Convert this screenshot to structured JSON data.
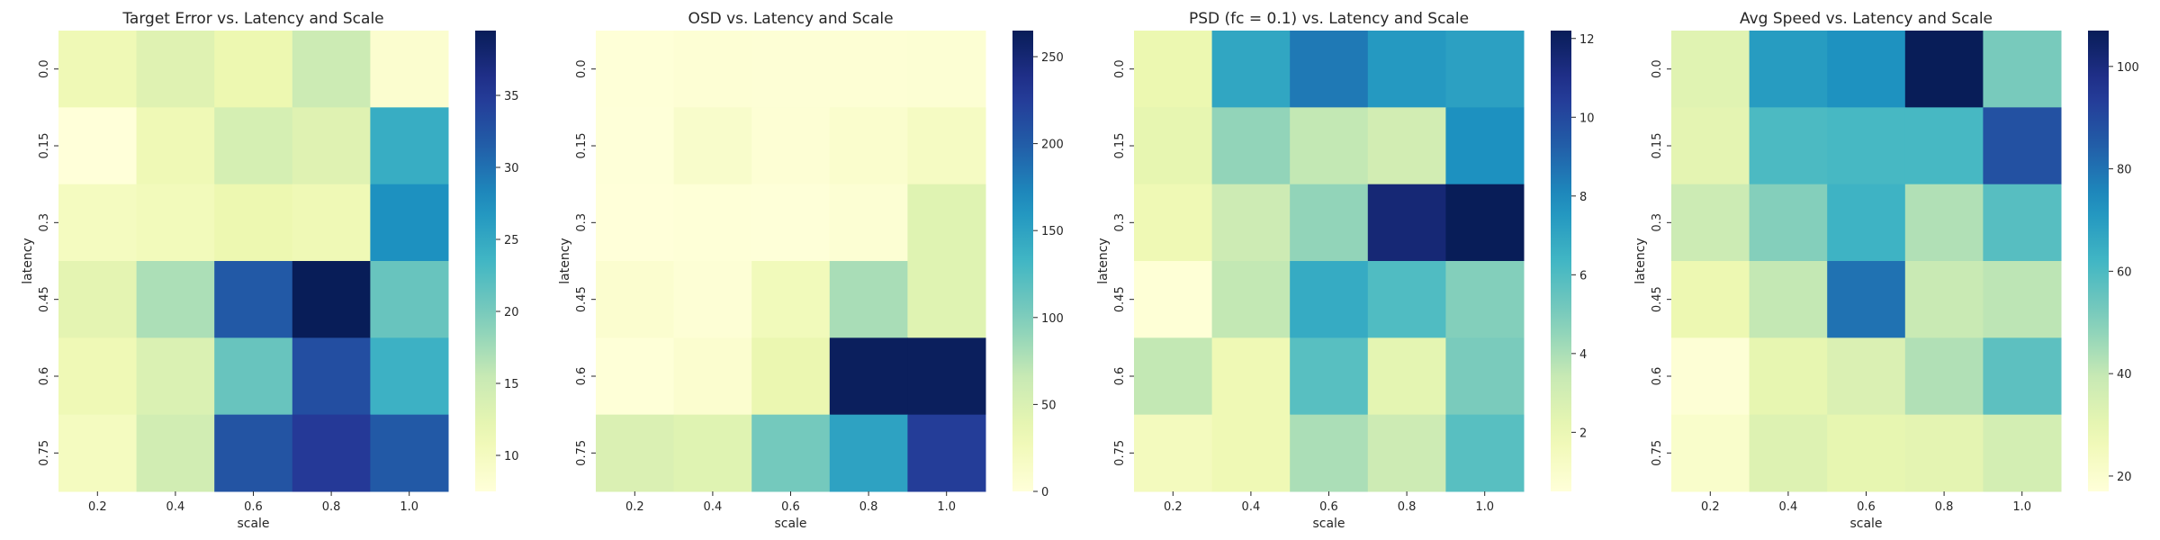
{
  "colors": {
    "colormap": [
      "#ffffd9",
      "#edf8b1",
      "#c7e9b4",
      "#7fcdbb",
      "#41b6c4",
      "#1d91c0",
      "#225ea8",
      "#253494",
      "#081d58"
    ],
    "text": "#262626"
  },
  "chart_data": [
    {
      "type": "heatmap",
      "title": "Target Error vs. Latency and Scale",
      "xlabel": "scale",
      "ylabel": "latency",
      "x_categories": [
        "0.2",
        "0.4",
        "0.6",
        "0.8",
        "1.0"
      ],
      "y_categories": [
        "0.0",
        "0.15",
        "0.3",
        "0.45",
        "0.6",
        "0.75"
      ],
      "values": [
        [
          11.0,
          13.0,
          11.5,
          15.0,
          8.5
        ],
        [
          7.5,
          11.0,
          14.0,
          13.0,
          24.5
        ],
        [
          10.0,
          10.5,
          11.5,
          11.0,
          27.5
        ],
        [
          12.5,
          17.0,
          32.0,
          39.5,
          21.0
        ],
        [
          11.0,
          13.5,
          21.0,
          33.0,
          24.0
        ],
        [
          10.0,
          14.5,
          32.5,
          35.0,
          32.0
        ]
      ],
      "vmin": 7.5,
      "vmax": 39.5,
      "colorbar_ticks": [
        10,
        15,
        20,
        25,
        30,
        35
      ]
    },
    {
      "type": "heatmap",
      "title": "OSD vs. Latency and Scale",
      "xlabel": "scale",
      "ylabel": "latency",
      "x_categories": [
        "0.2",
        "0.4",
        "0.6",
        "0.8",
        "1.0"
      ],
      "y_categories": [
        "0.0",
        "0.15",
        "0.3",
        "0.45",
        "0.6",
        "0.75"
      ],
      "values": [
        [
          2,
          4,
          3,
          4,
          5
        ],
        [
          1,
          12,
          4,
          10,
          18
        ],
        [
          0,
          2,
          1,
          5,
          45
        ],
        [
          8,
          3,
          25,
          80,
          45
        ],
        [
          2,
          8,
          35,
          262,
          262
        ],
        [
          50,
          45,
          105,
          150,
          225
        ]
      ],
      "vmin": 0,
      "vmax": 265,
      "colorbar_ticks": [
        0,
        50,
        100,
        150,
        200,
        250
      ]
    },
    {
      "type": "heatmap",
      "title": "PSD (fc = 0.1) vs. Latency and Scale",
      "xlabel": "scale",
      "ylabel": "latency",
      "x_categories": [
        "0.2",
        "0.4",
        "0.6",
        "0.8",
        "1.0"
      ],
      "y_categories": [
        "0.0",
        "0.15",
        "0.3",
        "0.45",
        "0.6",
        "0.75"
      ],
      "values": [
        [
          2.0,
          7.0,
          8.5,
          7.5,
          7.2
        ],
        [
          2.2,
          4.5,
          3.5,
          3.0,
          7.8
        ],
        [
          1.8,
          3.2,
          4.5,
          11.5,
          12.2
        ],
        [
          0.6,
          3.5,
          6.8,
          6.0,
          4.8
        ],
        [
          3.5,
          1.8,
          5.8,
          2.3,
          5.0
        ],
        [
          1.5,
          1.8,
          4.0,
          3.2,
          5.8
        ]
      ],
      "vmin": 0.5,
      "vmax": 12.2,
      "colorbar_ticks": [
        2,
        4,
        6,
        8,
        10,
        12
      ]
    },
    {
      "type": "heatmap",
      "title": "Avg Speed vs. Latency and Scale",
      "xlabel": "scale",
      "ylabel": "latency",
      "x_categories": [
        "0.2",
        "0.4",
        "0.6",
        "0.8",
        "1.0"
      ],
      "y_categories": [
        "0.0",
        "0.15",
        "0.3",
        "0.45",
        "0.6",
        "0.75"
      ],
      "values": [
        [
          32,
          70,
          73,
          107,
          52
        ],
        [
          31,
          60,
          61,
          61,
          88
        ],
        [
          38,
          50,
          63,
          43,
          58
        ],
        [
          28,
          40,
          80,
          39,
          41
        ],
        [
          18,
          30,
          34,
          43,
          57
        ],
        [
          21,
          33,
          30,
          31,
          36
        ]
      ],
      "vmin": 17,
      "vmax": 107,
      "colorbar_ticks": [
        20,
        40,
        60,
        80,
        100
      ]
    }
  ]
}
